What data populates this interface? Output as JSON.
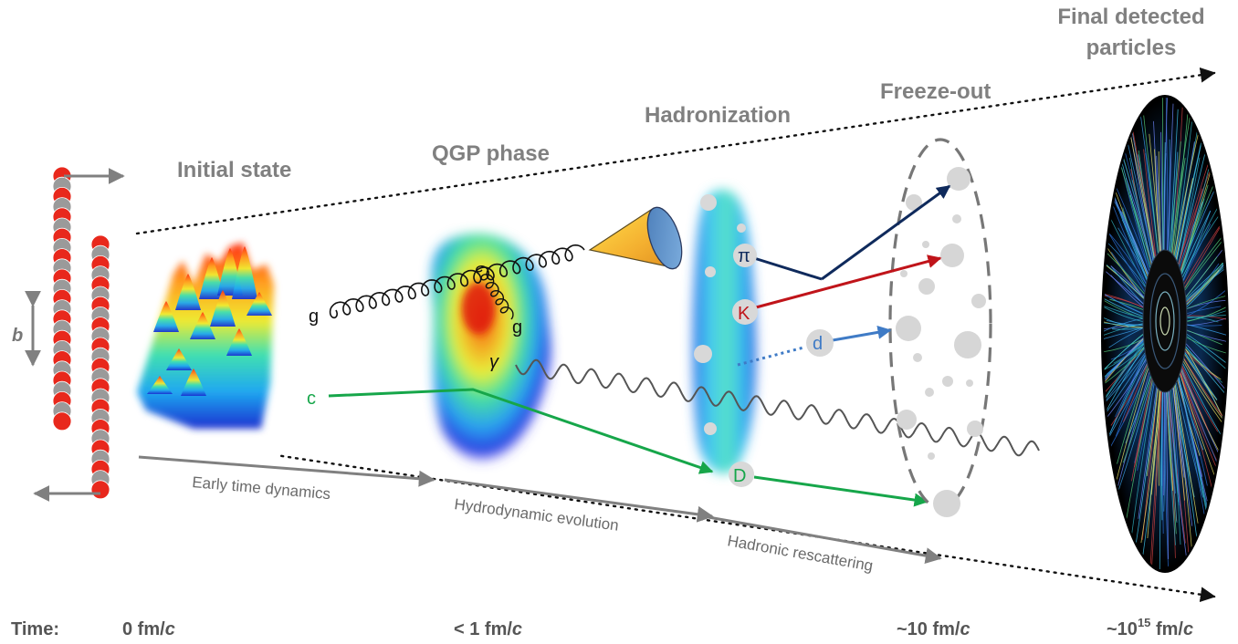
{
  "stages": {
    "initial_state": "Initial state",
    "qgp_phase": "QGP phase",
    "hadronization": "Hadronization",
    "freeze_out": "Freeze-out",
    "final_line1": "Final detected",
    "final_line2": "particles"
  },
  "processes": {
    "early": "Early time dynamics",
    "hydro": "Hydrodynamic evolution",
    "rescattering": "Hadronic rescattering"
  },
  "time": {
    "label": "Time:",
    "t0": "0 fm/",
    "t1": "< 1 fm/",
    "t2": "~10 fm/",
    "t3_prefix": "~10",
    "t3_exp": "15",
    "t3_suffix": " fm/",
    "c": "c"
  },
  "particles": {
    "impact": "b",
    "gluon": "g",
    "gluon_split": "g",
    "photon": "γ",
    "charm": "c",
    "pion": "π",
    "kaon": "K",
    "deuteron": "d",
    "dmeson": "D"
  },
  "colors": {
    "title_gray": "#808080",
    "arrow_gray": "#808080",
    "proton_red": "#e8281c",
    "neutron_gray": "#9a9a9a",
    "pion_navy": "#0f2a5c",
    "kaon_red": "#c0141a",
    "deuteron_blue": "#3f7bc6",
    "charm_green": "#16a64a",
    "detector_black": "#000000"
  }
}
